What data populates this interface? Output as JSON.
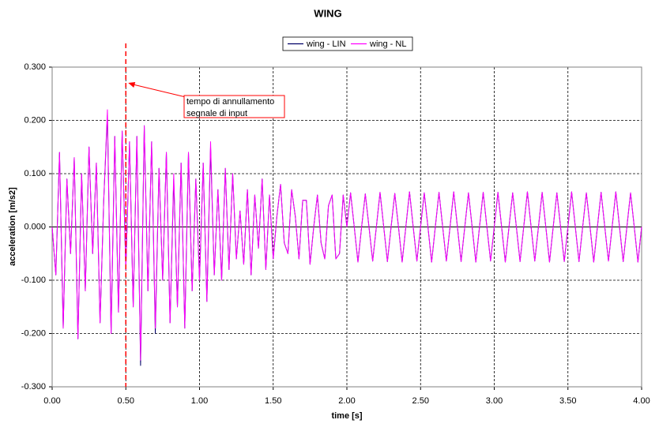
{
  "chart_data": {
    "type": "line",
    "title": "WING",
    "xlabel": "time [s]",
    "ylabel": "acceleration [m/s2]",
    "xlim": [
      0,
      4
    ],
    "ylim": [
      -0.3,
      0.3
    ],
    "xticks": [
      {
        "value": 0,
        "label": "0.00"
      },
      {
        "value": 0.5,
        "label": "0.50"
      },
      {
        "value": 1,
        "label": "1.00"
      },
      {
        "value": 1.5,
        "label": "1.50"
      },
      {
        "value": 2,
        "label": "2.00"
      },
      {
        "value": 2.5,
        "label": "2.50"
      },
      {
        "value": 3,
        "label": "3.00"
      },
      {
        "value": 3.5,
        "label": "3.50"
      },
      {
        "value": 4,
        "label": "4.00"
      }
    ],
    "yticks": [
      {
        "value": -0.3,
        "label": "-0.300"
      },
      {
        "value": -0.2,
        "label": "-0.200"
      },
      {
        "value": -0.1,
        "label": "-0.100"
      },
      {
        "value": 0,
        "label": "0.000"
      },
      {
        "value": 0.1,
        "label": "0.100"
      },
      {
        "value": 0.2,
        "label": "0.200"
      },
      {
        "value": 0.3,
        "label": "0.300"
      }
    ],
    "grid": true,
    "legend": "top",
    "annotation": {
      "text_lines": [
        "tempo di annullamento",
        "segnale di input"
      ],
      "vline_x": 0.5,
      "color": "#ff0000"
    },
    "x": [
      0,
      0.025,
      0.05,
      0.075,
      0.1,
      0.125,
      0.15,
      0.175,
      0.2,
      0.225,
      0.25,
      0.275,
      0.3,
      0.325,
      0.35,
      0.375,
      0.4,
      0.425,
      0.45,
      0.475,
      0.5,
      0.525,
      0.55,
      0.575,
      0.6,
      0.625,
      0.65,
      0.675,
      0.7,
      0.725,
      0.75,
      0.775,
      0.8,
      0.825,
      0.85,
      0.875,
      0.9,
      0.925,
      0.95,
      0.975,
      1,
      1.025,
      1.05,
      1.075,
      1.1,
      1.125,
      1.15,
      1.175,
      1.2,
      1.225,
      1.25,
      1.275,
      1.3,
      1.325,
      1.35,
      1.375,
      1.4,
      1.425,
      1.45,
      1.475,
      1.5,
      1.525,
      1.55,
      1.575,
      1.6,
      1.625,
      1.65,
      1.675,
      1.7,
      1.725,
      1.75,
      1.775,
      1.8,
      1.825,
      1.85,
      1.875,
      1.9,
      1.925,
      1.95,
      1.975,
      2,
      2.025,
      2.05,
      2.075,
      2.1,
      2.125,
      2.15,
      2.175,
      2.2,
      2.225,
      2.25,
      2.275,
      2.3,
      2.325,
      2.35,
      2.375,
      2.4,
      2.425,
      2.45,
      2.475,
      2.5,
      2.525,
      2.55,
      2.575,
      2.6,
      2.625,
      2.65,
      2.675,
      2.7,
      2.725,
      2.75,
      2.775,
      2.8,
      2.825,
      2.85,
      2.875,
      2.9,
      2.925,
      2.95,
      2.975,
      3,
      3.025,
      3.05,
      3.075,
      3.1,
      3.125,
      3.15,
      3.175,
      3.2,
      3.225,
      3.25,
      3.275,
      3.3,
      3.325,
      3.35,
      3.375,
      3.4,
      3.425,
      3.45,
      3.475,
      3.5,
      3.525,
      3.55,
      3.575,
      3.6,
      3.625,
      3.65,
      3.675,
      3.7,
      3.725,
      3.75,
      3.775,
      3.8,
      3.825,
      3.85,
      3.875,
      3.9,
      3.925,
      3.95,
      3.975,
      4
    ],
    "series": [
      {
        "name": "wing - LIN",
        "color": "#000066",
        "values": [
          0.0,
          -0.09,
          0.14,
          -0.19,
          0.09,
          -0.05,
          0.13,
          -0.21,
          0.1,
          -0.12,
          0.15,
          -0.05,
          0.12,
          -0.18,
          0.05,
          0.21,
          -0.2,
          0.17,
          -0.16,
          0.18,
          -0.08,
          0.16,
          -0.15,
          0.17,
          -0.26,
          0.19,
          -0.12,
          0.16,
          -0.2,
          0.11,
          -0.1,
          0.14,
          -0.18,
          0.09,
          -0.15,
          0.12,
          -0.19,
          0.14,
          -0.12,
          0.09,
          -0.1,
          0.12,
          -0.14,
          0.15,
          -0.09,
          0.07,
          -0.1,
          0.11,
          -0.08,
          0.1,
          -0.06,
          0.03,
          -0.07,
          0.07,
          -0.09,
          0.06,
          -0.04,
          0.09,
          -0.08,
          0.06,
          -0.06,
          0.02,
          0.08,
          -0.03,
          -0.05,
          0.07,
          0.02,
          -0.06,
          0.05,
          0.05,
          -0.07,
          0.0,
          0.06,
          -0.03,
          -0.06,
          0.04,
          0.06,
          -0.06,
          -0.05,
          0.06,
          0.0,
          0.064,
          0.0,
          -0.066,
          0.0,
          0.062,
          0.0,
          -0.064,
          0.0,
          0.065,
          0.0,
          -0.065,
          0.0,
          0.063,
          0.0,
          -0.066,
          0.0,
          0.066,
          0.0,
          -0.064,
          0.0,
          0.064,
          0.0,
          -0.066,
          0.0,
          0.065,
          0.0,
          -0.064,
          0.0,
          0.066,
          0.0,
          -0.065,
          0.0,
          0.064,
          0.0,
          -0.066,
          0.0,
          0.065,
          0.0,
          -0.064,
          0.0,
          0.065,
          0.0,
          -0.066,
          0.0,
          0.064,
          0.0,
          -0.065,
          0.0,
          0.066,
          0.0,
          -0.064,
          0.0,
          0.065,
          0.0,
          -0.066,
          0.0,
          0.064,
          0.0,
          -0.065,
          0.0,
          0.066,
          0.0,
          -0.065,
          0.0,
          0.064,
          0.0,
          -0.066,
          0.0,
          0.065,
          0.0,
          -0.064,
          0.0,
          0.066,
          0.0,
          -0.065,
          0.0,
          0.064,
          0.0,
          -0.066,
          0.0
        ]
      },
      {
        "name": "wing - NL",
        "color": "#ff00ff",
        "values": [
          0.0,
          -0.09,
          0.14,
          -0.19,
          0.09,
          -0.05,
          0.13,
          -0.21,
          0.1,
          -0.12,
          0.15,
          -0.05,
          0.12,
          -0.18,
          0.05,
          0.22,
          -0.2,
          0.17,
          -0.16,
          0.18,
          -0.08,
          0.16,
          -0.15,
          0.17,
          -0.25,
          0.19,
          -0.12,
          0.16,
          -0.19,
          0.11,
          -0.1,
          0.14,
          -0.18,
          0.1,
          -0.15,
          0.12,
          -0.19,
          0.14,
          -0.12,
          0.09,
          -0.1,
          0.12,
          -0.14,
          0.16,
          -0.09,
          0.07,
          -0.1,
          0.11,
          -0.08,
          0.1,
          -0.06,
          0.03,
          -0.07,
          0.07,
          -0.09,
          0.06,
          -0.04,
          0.09,
          -0.08,
          0.06,
          -0.06,
          0.02,
          0.08,
          -0.03,
          -0.05,
          0.07,
          0.02,
          -0.06,
          0.05,
          0.05,
          -0.07,
          0.0,
          0.06,
          -0.03,
          -0.06,
          0.04,
          0.06,
          -0.06,
          -0.05,
          0.06,
          0.0,
          0.064,
          0.0,
          -0.066,
          0.0,
          0.062,
          0.0,
          -0.064,
          0.0,
          0.065,
          0.0,
          -0.065,
          0.0,
          0.063,
          0.0,
          -0.066,
          0.0,
          0.066,
          0.0,
          -0.064,
          0.0,
          0.064,
          0.0,
          -0.066,
          0.0,
          0.065,
          0.0,
          -0.064,
          0.0,
          0.066,
          0.0,
          -0.065,
          0.0,
          0.064,
          0.0,
          -0.066,
          0.0,
          0.065,
          0.0,
          -0.064,
          0.0,
          0.065,
          0.0,
          -0.066,
          0.0,
          0.064,
          0.0,
          -0.065,
          0.0,
          0.066,
          0.0,
          -0.064,
          0.0,
          0.065,
          0.0,
          -0.066,
          0.0,
          0.064,
          0.0,
          -0.065,
          0.0,
          0.066,
          0.0,
          -0.065,
          0.0,
          0.064,
          0.0,
          -0.066,
          0.0,
          0.065,
          0.0,
          -0.064,
          0.0,
          0.066,
          0.0,
          -0.065,
          0.0,
          0.064,
          0.0,
          -0.066,
          0.0
        ]
      }
    ]
  }
}
